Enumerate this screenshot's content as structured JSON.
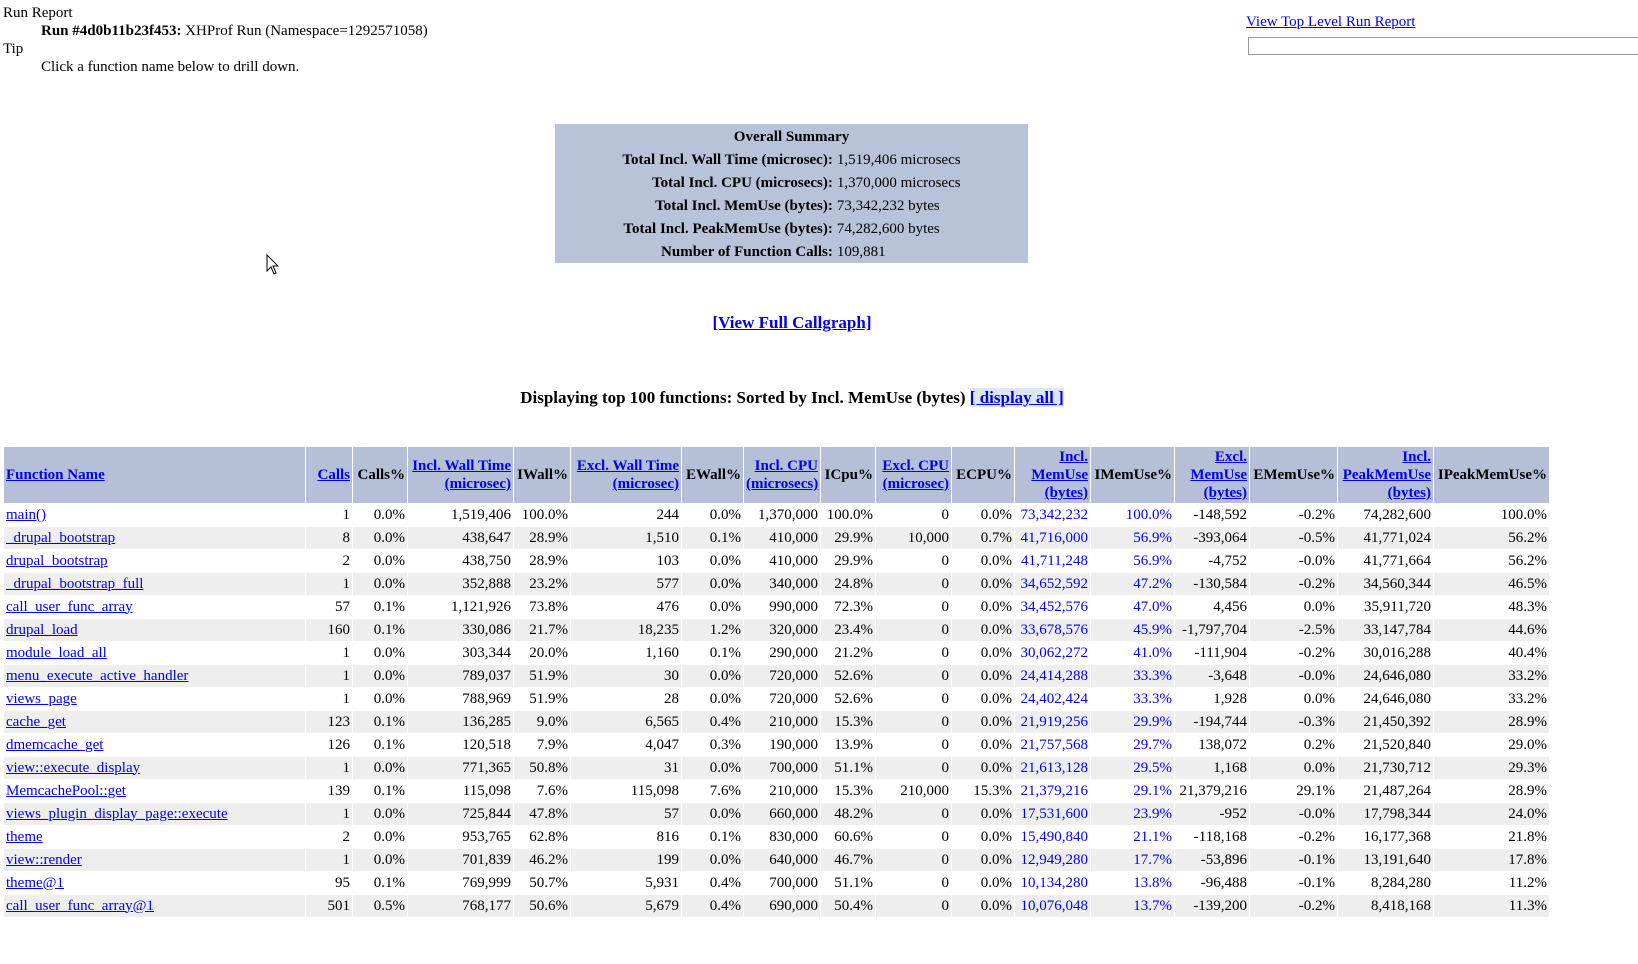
{
  "header": {
    "run_report": "Run Report",
    "run_id": "Run #4d0b11b23f453:",
    "run_desc": "XHProf Run (Namespace=1292571058)",
    "tip": "Tip",
    "tip_text": "Click a function name below to drill down."
  },
  "top_link": "View Top Level Run Report",
  "summary": {
    "title": "Overall Summary",
    "rows": [
      [
        "Total Incl. Wall Time (microsec):",
        "1,519,406 microsecs"
      ],
      [
        "Total Incl. CPU (microsecs):",
        "1,370,000 microsecs"
      ],
      [
        "Total Incl. MemUse (bytes):",
        "73,342,232 bytes"
      ],
      [
        "Total Incl. PeakMemUse (bytes):",
        "74,282,600 bytes"
      ],
      [
        "Number of Function Calls:",
        "109,881"
      ]
    ]
  },
  "callgraph_link": "[View Full Callgraph]",
  "display": {
    "text": "Displaying top 100 functions: Sorted by Incl. MemUse (bytes)",
    "link": "[ display all ]"
  },
  "table": {
    "highlight_columns": [
      11,
      12
    ],
    "columns": [
      {
        "label": "Function Name",
        "link": true
      },
      {
        "label": "Calls",
        "link": true
      },
      {
        "label": "Calls%",
        "link": false
      },
      {
        "label": "Incl. Wall Time (microsec)",
        "link": true
      },
      {
        "label": "IWall%",
        "link": false
      },
      {
        "label": "Excl. Wall Time (microsec)",
        "link": true
      },
      {
        "label": "EWall%",
        "link": false
      },
      {
        "label": "Incl. CPU (microsecs)",
        "link": true
      },
      {
        "label": "ICpu%",
        "link": false
      },
      {
        "label": "Excl. CPU (microsec)",
        "link": true
      },
      {
        "label": "ECPU%",
        "link": false
      },
      {
        "label": "Incl. MemUse (bytes)",
        "link": true
      },
      {
        "label": "IMemUse%",
        "link": false
      },
      {
        "label": "Excl. MemUse (bytes)",
        "link": true
      },
      {
        "label": "EMemUse%",
        "link": false
      },
      {
        "label": "Incl. PeakMemUse (bytes)",
        "link": true
      },
      {
        "label": "IPeakMemUse%",
        "link": false
      }
    ],
    "rows": [
      [
        "main()",
        "1",
        "0.0%",
        "1,519,406",
        "100.0%",
        "244",
        "0.0%",
        "1,370,000",
        "100.0%",
        "0",
        "0.0%",
        "73,342,232",
        "100.0%",
        "-148,592",
        "-0.2%",
        "74,282,600",
        "100.0%"
      ],
      [
        "_drupal_bootstrap",
        "8",
        "0.0%",
        "438,647",
        "28.9%",
        "1,510",
        "0.1%",
        "410,000",
        "29.9%",
        "10,000",
        "0.7%",
        "41,716,000",
        "56.9%",
        "-393,064",
        "-0.5%",
        "41,771,024",
        "56.2%"
      ],
      [
        "drupal_bootstrap",
        "2",
        "0.0%",
        "438,750",
        "28.9%",
        "103",
        "0.0%",
        "410,000",
        "29.9%",
        "0",
        "0.0%",
        "41,711,248",
        "56.9%",
        "-4,752",
        "-0.0%",
        "41,771,664",
        "56.2%"
      ],
      [
        "_drupal_bootstrap_full",
        "1",
        "0.0%",
        "352,888",
        "23.2%",
        "577",
        "0.0%",
        "340,000",
        "24.8%",
        "0",
        "0.0%",
        "34,652,592",
        "47.2%",
        "-130,584",
        "-0.2%",
        "34,560,344",
        "46.5%"
      ],
      [
        "call_user_func_array",
        "57",
        "0.1%",
        "1,121,926",
        "73.8%",
        "476",
        "0.0%",
        "990,000",
        "72.3%",
        "0",
        "0.0%",
        "34,452,576",
        "47.0%",
        "4,456",
        "0.0%",
        "35,911,720",
        "48.3%"
      ],
      [
        "drupal_load",
        "160",
        "0.1%",
        "330,086",
        "21.7%",
        "18,235",
        "1.2%",
        "320,000",
        "23.4%",
        "0",
        "0.0%",
        "33,678,576",
        "45.9%",
        "-1,797,704",
        "-2.5%",
        "33,147,784",
        "44.6%"
      ],
      [
        "module_load_all",
        "1",
        "0.0%",
        "303,344",
        "20.0%",
        "1,160",
        "0.1%",
        "290,000",
        "21.2%",
        "0",
        "0.0%",
        "30,062,272",
        "41.0%",
        "-111,904",
        "-0.2%",
        "30,016,288",
        "40.4%"
      ],
      [
        "menu_execute_active_handler",
        "1",
        "0.0%",
        "789,037",
        "51.9%",
        "30",
        "0.0%",
        "720,000",
        "52.6%",
        "0",
        "0.0%",
        "24,414,288",
        "33.3%",
        "-3,648",
        "-0.0%",
        "24,646,080",
        "33.2%"
      ],
      [
        "views_page",
        "1",
        "0.0%",
        "788,969",
        "51.9%",
        "28",
        "0.0%",
        "720,000",
        "52.6%",
        "0",
        "0.0%",
        "24,402,424",
        "33.3%",
        "1,928",
        "0.0%",
        "24,646,080",
        "33.2%"
      ],
      [
        "cache_get",
        "123",
        "0.1%",
        "136,285",
        "9.0%",
        "6,565",
        "0.4%",
        "210,000",
        "15.3%",
        "0",
        "0.0%",
        "21,919,256",
        "29.9%",
        "-194,744",
        "-0.3%",
        "21,450,392",
        "28.9%"
      ],
      [
        "dmemcache_get",
        "126",
        "0.1%",
        "120,518",
        "7.9%",
        "4,047",
        "0.3%",
        "190,000",
        "13.9%",
        "0",
        "0.0%",
        "21,757,568",
        "29.7%",
        "138,072",
        "0.2%",
        "21,520,840",
        "29.0%"
      ],
      [
        "view::execute_display",
        "1",
        "0.0%",
        "771,365",
        "50.8%",
        "31",
        "0.0%",
        "700,000",
        "51.1%",
        "0",
        "0.0%",
        "21,613,128",
        "29.5%",
        "1,168",
        "0.0%",
        "21,730,712",
        "29.3%"
      ],
      [
        "MemcachePool::get",
        "139",
        "0.1%",
        "115,098",
        "7.6%",
        "115,098",
        "7.6%",
        "210,000",
        "15.3%",
        "210,000",
        "15.3%",
        "21,379,216",
        "29.1%",
        "21,379,216",
        "29.1%",
        "21,487,264",
        "28.9%"
      ],
      [
        "views_plugin_display_page::execute",
        "1",
        "0.0%",
        "725,844",
        "47.8%",
        "57",
        "0.0%",
        "660,000",
        "48.2%",
        "0",
        "0.0%",
        "17,531,600",
        "23.9%",
        "-952",
        "-0.0%",
        "17,798,344",
        "24.0%"
      ],
      [
        "theme",
        "2",
        "0.0%",
        "953,765",
        "62.8%",
        "816",
        "0.1%",
        "830,000",
        "60.6%",
        "0",
        "0.0%",
        "15,490,840",
        "21.1%",
        "-118,168",
        "-0.2%",
        "16,177,368",
        "21.8%"
      ],
      [
        "view::render",
        "1",
        "0.0%",
        "701,839",
        "46.2%",
        "199",
        "0.0%",
        "640,000",
        "46.7%",
        "0",
        "0.0%",
        "12,949,280",
        "17.7%",
        "-53,896",
        "-0.1%",
        "13,191,640",
        "17.8%"
      ],
      [
        "theme@1",
        "95",
        "0.1%",
        "769,999",
        "50.7%",
        "5,931",
        "0.4%",
        "700,000",
        "51.1%",
        "0",
        "0.0%",
        "10,134,280",
        "13.8%",
        "-96,488",
        "-0.1%",
        "8,284,280",
        "11.2%"
      ],
      [
        "call_user_func_array@1",
        "501",
        "0.5%",
        "768,177",
        "50.6%",
        "5,679",
        "0.4%",
        "690,000",
        "50.4%",
        "0",
        "0.0%",
        "10,076,048",
        "13.7%",
        "-139,200",
        "-0.2%",
        "8,418,168",
        "11.3%"
      ]
    ]
  }
}
